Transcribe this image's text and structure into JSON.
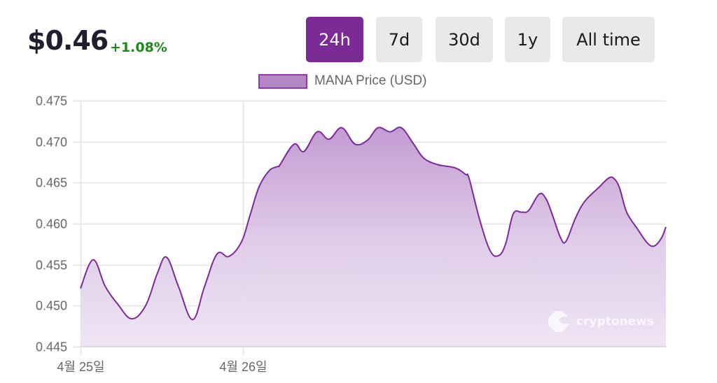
{
  "header": {
    "price": "$0.46",
    "change": "+1.08%",
    "change_color": "#1a8a1a"
  },
  "range_buttons": [
    {
      "label": "24h",
      "active": true
    },
    {
      "label": "7d",
      "active": false
    },
    {
      "label": "30d",
      "active": false
    },
    {
      "label": "1y",
      "active": false
    },
    {
      "label": "All time",
      "active": false
    }
  ],
  "legend": {
    "label": "MANA Price (USD)",
    "swatch_color": "#b687c6"
  },
  "watermark": {
    "text": "cryptonews",
    "icon": "cryptonews-logo-icon"
  },
  "colors": {
    "accent": "#7b2a96",
    "line": "#7b2a96",
    "fill_top": "#b687c6",
    "fill_bottom": "#efe6f5",
    "grid": "#e4e4e4"
  },
  "chart_data": {
    "type": "area",
    "title": "",
    "xlabel": "",
    "ylabel": "",
    "series": [
      {
        "name": "MANA Price (USD)",
        "x": [
          0,
          18,
          35,
          53,
          73,
          93,
          110,
          123,
          140,
          160,
          177,
          195,
          212,
          230,
          242,
          255,
          270,
          283,
          285,
          305,
          319,
          338,
          355,
          373,
          392,
          410,
          425,
          442,
          458,
          475,
          490,
          510,
          535,
          550,
          555,
          570,
          585,
          597,
          607,
          618,
          630,
          640,
          655,
          665,
          675,
          685,
          693,
          707,
          720,
          740,
          755,
          763,
          770,
          780,
          795,
          810,
          820,
          830,
          836
        ],
        "values": [
          0.4521,
          0.4556,
          0.4524,
          0.4502,
          0.4484,
          0.45,
          0.454,
          0.4559,
          0.4523,
          0.4483,
          0.4523,
          0.4563,
          0.456,
          0.4578,
          0.461,
          0.4645,
          0.4665,
          0.467,
          0.4672,
          0.4697,
          0.4688,
          0.4712,
          0.4703,
          0.4717,
          0.4697,
          0.4702,
          0.4717,
          0.4712,
          0.4717,
          0.4698,
          0.468,
          0.4672,
          0.4668,
          0.466,
          0.4655,
          0.4605,
          0.4567,
          0.4561,
          0.4575,
          0.4612,
          0.4614,
          0.4616,
          0.4636,
          0.463,
          0.4608,
          0.4584,
          0.4578,
          0.4607,
          0.4627,
          0.4644,
          0.4656,
          0.4654,
          0.4643,
          0.4614,
          0.4594,
          0.4576,
          0.4573,
          0.4583,
          0.4596
        ]
      }
    ],
    "x_ticks": [
      {
        "label": "4월 25일",
        "pos": 0
      },
      {
        "label": "4월 26일",
        "pos": 232
      }
    ],
    "y_ticks": [
      "0.475",
      "0.470",
      "0.465",
      "0.460",
      "0.455",
      "0.450",
      "0.445"
    ],
    "ylim": [
      0.445,
      0.475
    ],
    "grid": true,
    "legend_position": "top"
  }
}
